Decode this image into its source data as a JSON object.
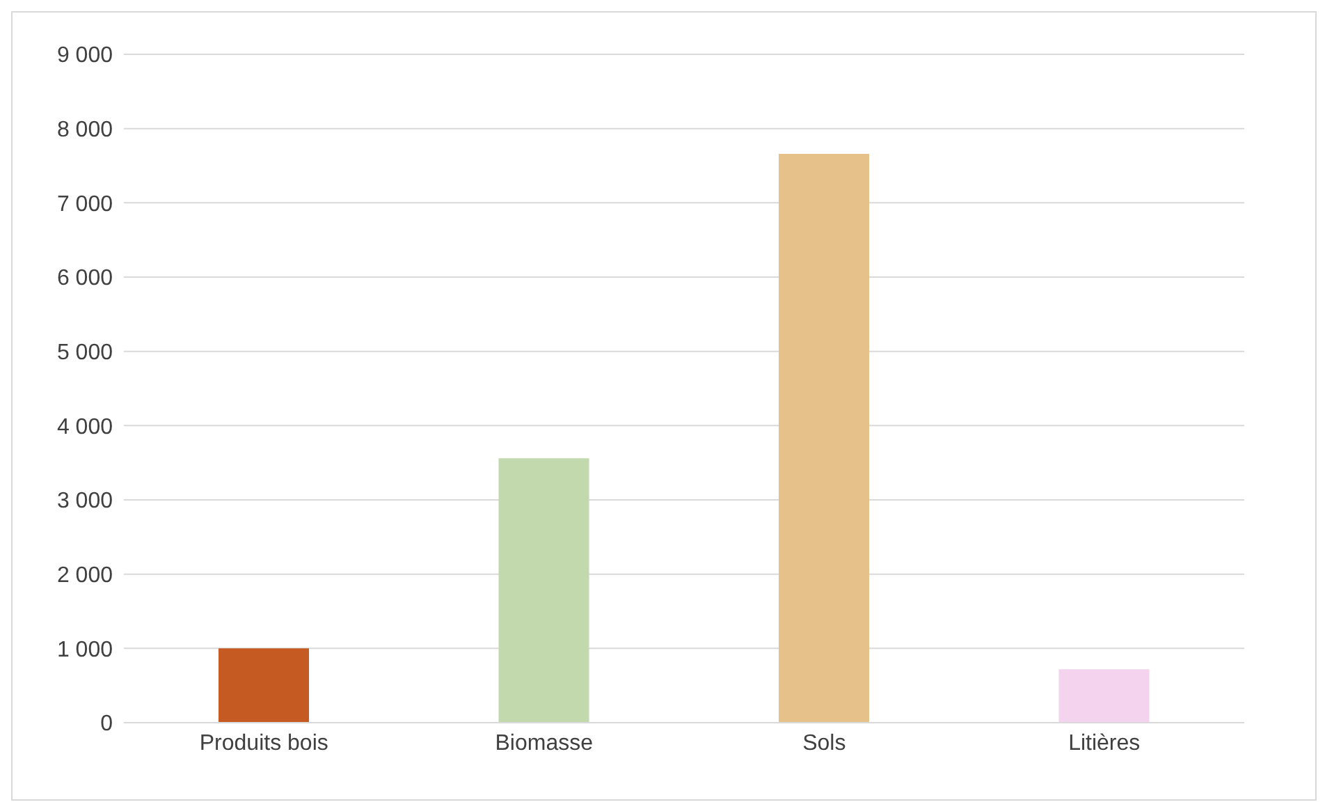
{
  "chart_data": {
    "type": "bar",
    "categories": [
      "Produits bois",
      "Biomasse",
      "Sols",
      "Litières"
    ],
    "values": [
      1000,
      3560,
      7660,
      720
    ],
    "colors": [
      "#c55a22",
      "#c1d9ad",
      "#e6c189",
      "#f4d3ee"
    ],
    "ylim": [
      0,
      9000
    ],
    "yticks": [
      {
        "value": 0,
        "label": "0"
      },
      {
        "value": 1000,
        "label": "1 000"
      },
      {
        "value": 2000,
        "label": "2 000"
      },
      {
        "value": 3000,
        "label": "3 000"
      },
      {
        "value": 4000,
        "label": "4 000"
      },
      {
        "value": 5000,
        "label": "5 000"
      },
      {
        "value": 6000,
        "label": "6 000"
      },
      {
        "value": 7000,
        "label": "7 000"
      },
      {
        "value": 8000,
        "label": "8 000"
      },
      {
        "value": 9000,
        "label": "9 000"
      }
    ],
    "grid": "y"
  }
}
